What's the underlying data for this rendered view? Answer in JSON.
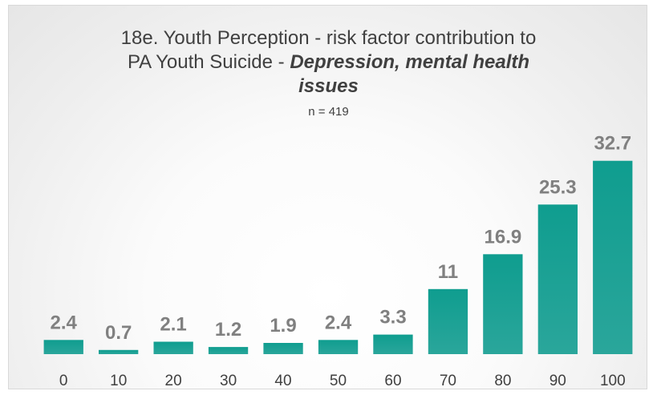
{
  "chart_data": {
    "type": "bar",
    "title_line1": "18e. Youth Perception - risk factor contribution to",
    "title_line2_plain": "PA Youth Suicide  -  ",
    "title_line2_emph": "Depression, mental health",
    "title_line3_emph": "issues",
    "subtitle": "n = 419",
    "categories": [
      "0",
      "10",
      "20",
      "30",
      "40",
      "50",
      "60",
      "70",
      "80",
      "90",
      "100"
    ],
    "values": [
      2.4,
      0.7,
      2.1,
      1.2,
      1.9,
      2.4,
      3.3,
      11,
      16.9,
      25.3,
      32.7
    ],
    "ylim": [
      0,
      35
    ],
    "grid": false,
    "legend": "none",
    "colors": {
      "bar": "#1a9e92",
      "bar_top": "#0f9d8f",
      "label": "#808080",
      "text": "#404040"
    }
  }
}
